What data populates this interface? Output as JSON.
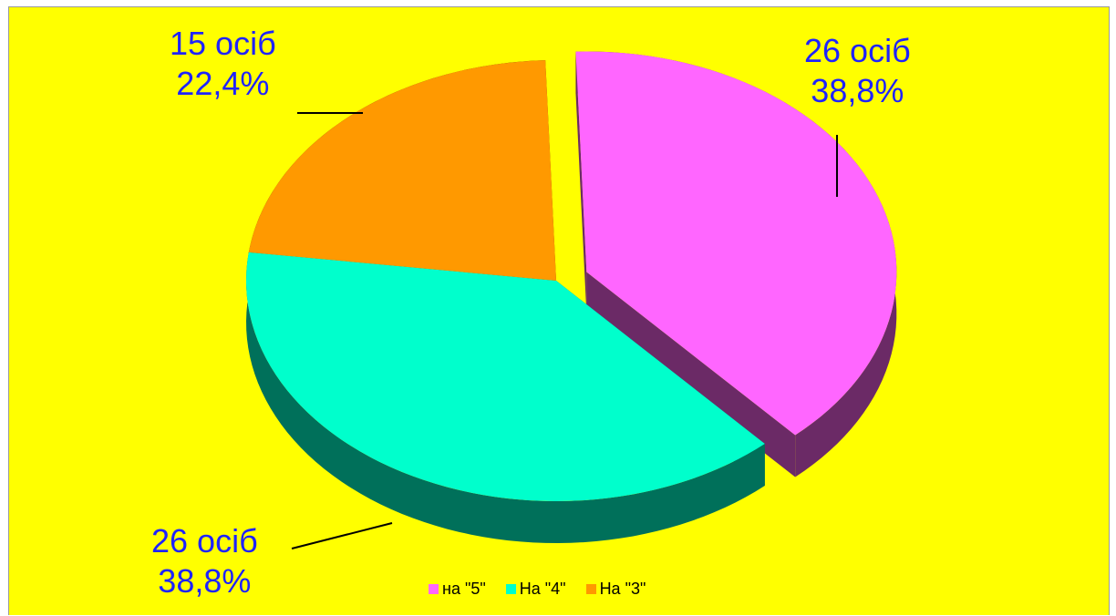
{
  "chart_data": {
    "type": "pie",
    "categories": [
      "на \"5\"",
      "На \"4\"",
      "На \"3\""
    ],
    "values": [
      26,
      26,
      15
    ],
    "percent_labels": [
      "38,8%",
      "38,8%",
      "22,4%"
    ],
    "count_labels": [
      "26 осіб",
      "26 осіб",
      "15 осіб"
    ],
    "colors": [
      "#ff66ff",
      "#00ffcc",
      "#ff9900"
    ],
    "side_colors": [
      "#6b2a66",
      "#00705a",
      "#6b3a00"
    ],
    "exploded": "на \"5\"",
    "legend_position": "bottom",
    "background": "#ffff00",
    "label_color": "#1f23ff"
  }
}
